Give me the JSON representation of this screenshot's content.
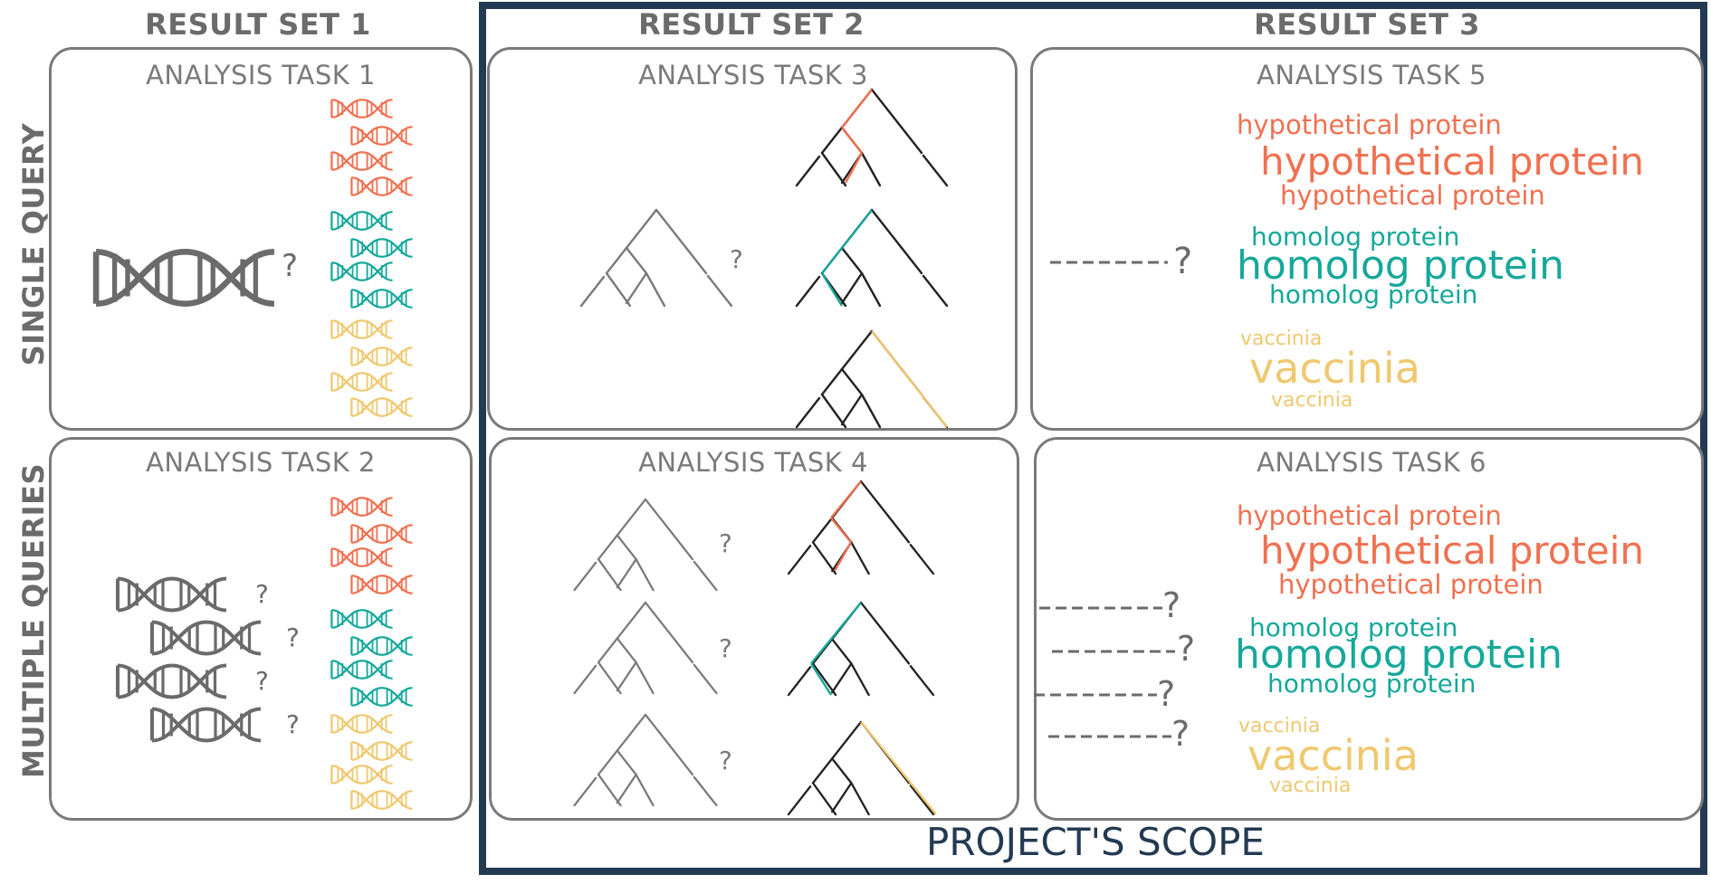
{
  "columns": {
    "set1": "RESULT SET 1",
    "set2": "RESULT SET 2",
    "set3": "RESULT SET 3"
  },
  "rows": {
    "single": "SINGLE QUERY",
    "multiple": "MULTIPLE QUERIES"
  },
  "tasks": {
    "t1": "ANALYSIS TASK 1",
    "t2": "ANALYSIS TASK 2",
    "t3": "ANALYSIS TASK 3",
    "t4": "ANALYSIS TASK 4",
    "t5": "ANALYSIS TASK 5",
    "t6": "ANALYSIS TASK 6"
  },
  "question_mark": "?",
  "clouds": {
    "hypothetical": "hypothetical protein",
    "homolog": "homolog protein",
    "vaccinia": "vaccinia"
  },
  "scope_label": "PROJECT'S SCOPE",
  "colors": {
    "red": "#f07050",
    "teal": "#15a89a",
    "yellow": "#efc86e",
    "gray": "#6b6b6b",
    "dark": "#222222",
    "scope": "#233a52"
  }
}
